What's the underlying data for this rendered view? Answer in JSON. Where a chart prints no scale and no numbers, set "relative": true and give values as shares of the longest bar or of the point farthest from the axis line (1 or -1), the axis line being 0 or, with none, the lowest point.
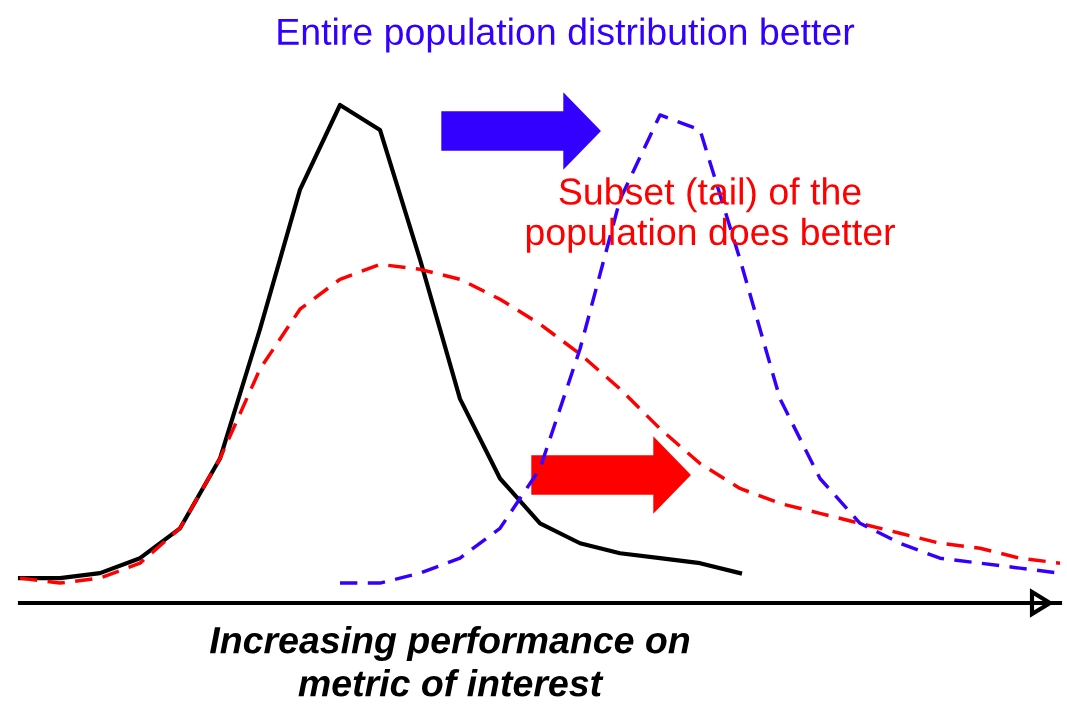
{
  "chart_data": {
    "type": "line",
    "relative": true,
    "title": "Entire population distribution better",
    "xlabel": "Increasing performance on\nmetric of interest",
    "categories": [
      null,
      null,
      null,
      null,
      null,
      null,
      null,
      null,
      null,
      null,
      null,
      null,
      null,
      null,
      null,
      null,
      null,
      null,
      null,
      null,
      null,
      null,
      null,
      null,
      null,
      null,
      null
    ],
    "series": [
      {
        "color": "#000000",
        "line_style": "solid",
        "values": [
          0.05,
          0.05,
          0.06,
          0.09,
          0.15,
          0.29,
          0.55,
          0.83,
          1.0,
          0.95,
          0.69,
          0.41,
          0.25,
          0.16,
          0.12,
          0.1,
          0.09,
          0.08,
          0.06,
          null,
          null,
          null,
          null,
          null,
          null,
          null,
          null
        ]
      },
      {
        "color": "#ff0000",
        "line_style": "dashed",
        "values": [
          0.05,
          0.04,
          0.05,
          0.08,
          0.15,
          0.29,
          0.47,
          0.59,
          0.65,
          0.68,
          0.67,
          0.65,
          0.61,
          0.56,
          0.5,
          0.43,
          0.35,
          0.28,
          0.23,
          0.2,
          0.18,
          0.16,
          0.14,
          0.12,
          0.11,
          0.09,
          0.08
        ]
      },
      {
        "color": "#3300ff",
        "line_style": "dashed",
        "values": [
          null,
          null,
          null,
          null,
          null,
          null,
          null,
          null,
          0.04,
          0.04,
          0.06,
          0.09,
          0.15,
          0.27,
          0.51,
          0.81,
          0.98,
          0.95,
          0.69,
          0.41,
          0.25,
          0.16,
          0.12,
          0.09,
          0.08,
          0.07,
          0.06
        ]
      }
    ],
    "annotations": [
      "Subset (tail) of the\npopulation does better"
    ],
    "grid": false
  }
}
